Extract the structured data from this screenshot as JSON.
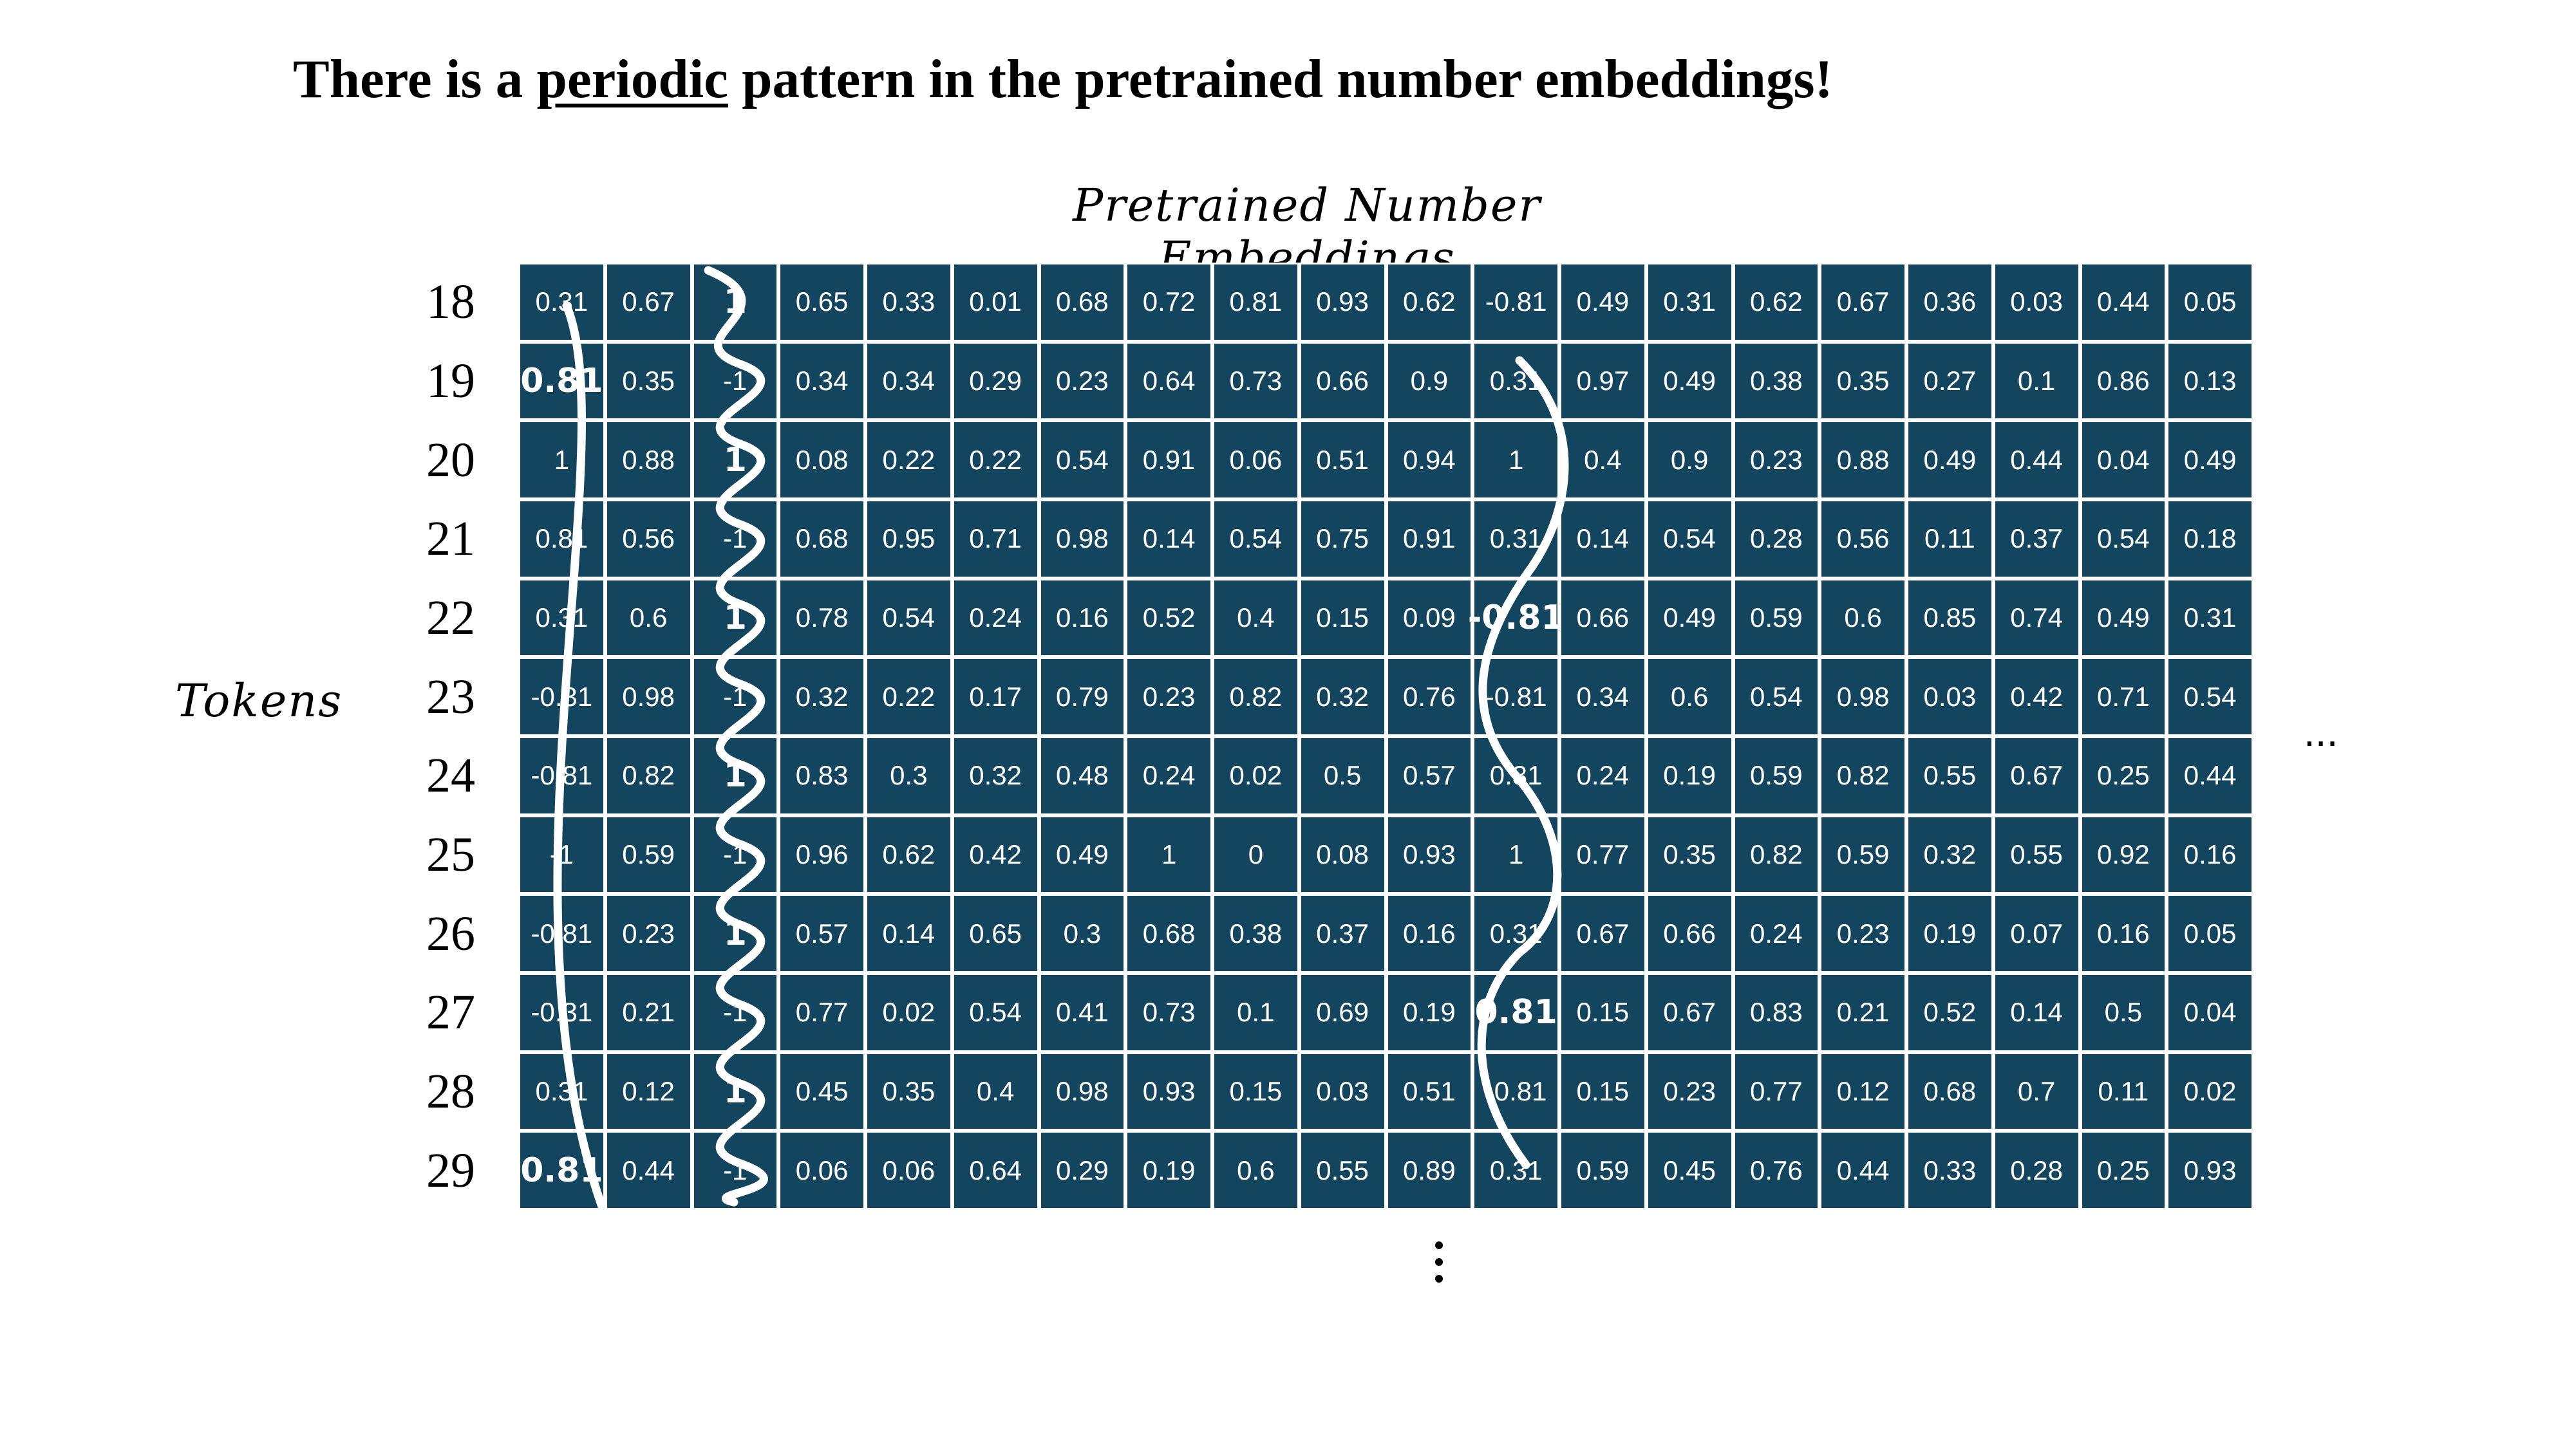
{
  "title": {
    "pre": "There is a ",
    "emphasis": "periodic",
    "post": " pattern in the pretrained number embeddings!"
  },
  "grid_title": "Pretrained Number Embeddings",
  "axis_label": "Tokens",
  "ellipsis_right": "...",
  "row_labels": [
    "18",
    "19",
    "20",
    "21",
    "22",
    "23",
    "24",
    "25",
    "26",
    "27",
    "28",
    "29"
  ],
  "rows": [
    [
      "0.31",
      "0.67",
      "1",
      "0.65",
      "0.33",
      "0.01",
      "0.68",
      "0.72",
      "0.81",
      "0.93",
      "0.62",
      "-0.81",
      "0.49",
      "0.31",
      "0.62",
      "0.67",
      "0.36",
      "0.03",
      "0.44",
      "0.05"
    ],
    [
      "0.81",
      "0.35",
      "-1",
      "0.34",
      "0.34",
      "0.29",
      "0.23",
      "0.64",
      "0.73",
      "0.66",
      "0.9",
      "0.31",
      "0.97",
      "0.49",
      "0.38",
      "0.35",
      "0.27",
      "0.1",
      "0.86",
      "0.13"
    ],
    [
      "1",
      "0.88",
      "1",
      "0.08",
      "0.22",
      "0.22",
      "0.54",
      "0.91",
      "0.06",
      "0.51",
      "0.94",
      "1",
      "0.4",
      "0.9",
      "0.23",
      "0.88",
      "0.49",
      "0.44",
      "0.04",
      "0.49"
    ],
    [
      "0.81",
      "0.56",
      "-1",
      "0.68",
      "0.95",
      "0.71",
      "0.98",
      "0.14",
      "0.54",
      "0.75",
      "0.91",
      "0.31",
      "0.14",
      "0.54",
      "0.28",
      "0.56",
      "0.11",
      "0.37",
      "0.54",
      "0.18"
    ],
    [
      "0.31",
      "0.6",
      "1",
      "0.78",
      "0.54",
      "0.24",
      "0.16",
      "0.52",
      "0.4",
      "0.15",
      "0.09",
      "-0.81",
      "0.66",
      "0.49",
      "0.59",
      "0.6",
      "0.85",
      "0.74",
      "0.49",
      "0.31"
    ],
    [
      "-0.31",
      "0.98",
      "-1",
      "0.32",
      "0.22",
      "0.17",
      "0.79",
      "0.23",
      "0.82",
      "0.32",
      "0.76",
      "-0.81",
      "0.34",
      "0.6",
      "0.54",
      "0.98",
      "0.03",
      "0.42",
      "0.71",
      "0.54"
    ],
    [
      "-0.81",
      "0.82",
      "1",
      "0.83",
      "0.3",
      "0.32",
      "0.48",
      "0.24",
      "0.02",
      "0.5",
      "0.57",
      "0.31",
      "0.24",
      "0.19",
      "0.59",
      "0.82",
      "0.55",
      "0.67",
      "0.25",
      "0.44"
    ],
    [
      "-1",
      "0.59",
      "-1",
      "0.96",
      "0.62",
      "0.42",
      "0.49",
      "1",
      "0",
      "0.08",
      "0.93",
      "1",
      "0.77",
      "0.35",
      "0.82",
      "0.59",
      "0.32",
      "0.55",
      "0.92",
      "0.16"
    ],
    [
      "-0.81",
      "0.23",
      "1",
      "0.57",
      "0.14",
      "0.65",
      "0.3",
      "0.68",
      "0.38",
      "0.37",
      "0.16",
      "0.31",
      "0.67",
      "0.66",
      "0.24",
      "0.23",
      "0.19",
      "0.07",
      "0.16",
      "0.05"
    ],
    [
      "-0.31",
      "0.21",
      "-1",
      "0.77",
      "0.02",
      "0.54",
      "0.41",
      "0.73",
      "0.1",
      "0.69",
      "0.19",
      "0.81",
      "0.15",
      "0.67",
      "0.83",
      "0.21",
      "0.52",
      "0.14",
      "0.5",
      "0.04"
    ],
    [
      "0.31",
      "0.12",
      "1",
      "0.45",
      "0.35",
      "0.4",
      "0.98",
      "0.93",
      "0.15",
      "0.03",
      "0.51",
      "-0.81",
      "0.15",
      "0.23",
      "0.77",
      "0.12",
      "0.68",
      "0.7",
      "0.11",
      "0.02"
    ],
    [
      "0.81",
      "0.44",
      "-1",
      "0.06",
      "0.06",
      "0.64",
      "0.29",
      "0.19",
      "0.6",
      "0.55",
      "0.89",
      "0.31",
      "0.59",
      "0.45",
      "0.76",
      "0.44",
      "0.33",
      "0.28",
      "0.25",
      "0.93"
    ]
  ],
  "bold_cells": [
    [
      1,
      0
    ],
    [
      11,
      0
    ],
    [
      0,
      2
    ],
    [
      2,
      2
    ],
    [
      4,
      2
    ],
    [
      6,
      2
    ],
    [
      8,
      2
    ],
    [
      10,
      2
    ],
    [
      4,
      11
    ],
    [
      9,
      11
    ]
  ],
  "highlighted_columns": [
    0,
    2,
    11
  ],
  "colors": {
    "cell_fill": "#13465e",
    "cell_border": "#ffffff",
    "cell_text": "#ffffff",
    "wave": "#ffffff",
    "text": "#000000"
  }
}
